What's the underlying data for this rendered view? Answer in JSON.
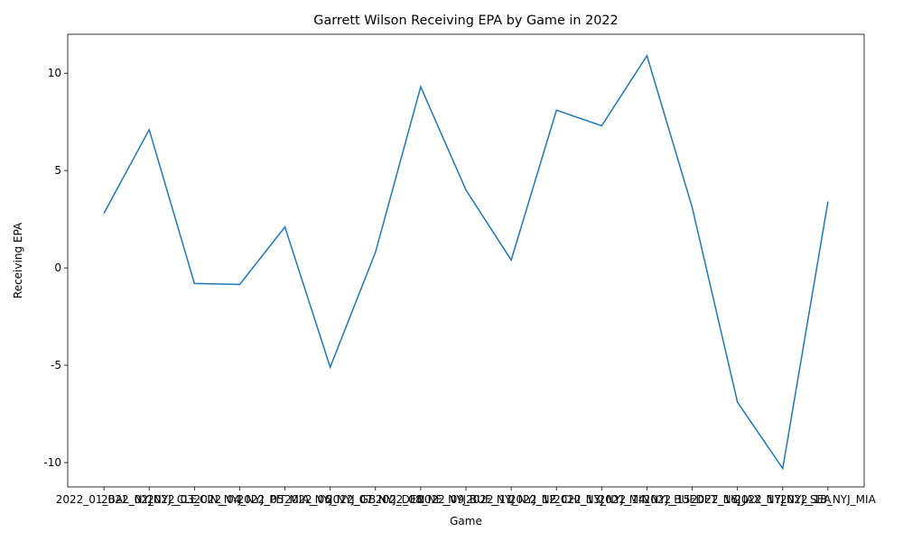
{
  "chart_data": {
    "type": "line",
    "title": "Garrett Wilson Receiving EPA by Game in 2022",
    "x_label": "Game",
    "y_label": "Receiving EPA",
    "categories": [
      "2022_01_BAL_NYJ",
      "2022_02_NYJ_CLE",
      "2022_03_CIN_NYJ",
      "2022_04_NYJ_PIT",
      "2022_05_MIA_NYJ",
      "2022_06_NYJ_GB",
      "2022_07_NYJ_DEN",
      "2022_08_NE_NYJ",
      "2022_09_BUF_NYJ",
      "2022_11_NYJ_NE",
      "2022_12_CHI_NYJ",
      "2022_13_NYJ_MIN",
      "2022_14_NYJ_BUF",
      "2022_15_DET_NYJ",
      "2022_16_JAX_NYJ",
      "2022_17_NYJ_SEA",
      "2022_18_NYJ_MIA"
    ],
    "series": [
      {
        "name": "Receiving EPA",
        "color": "#1f77b4",
        "values": [
          2.8,
          7.1,
          -0.8,
          -0.85,
          2.1,
          -5.1,
          0.8,
          9.3,
          4.0,
          0.4,
          8.1,
          7.3,
          10.9,
          3.1,
          -6.9,
          -10.3,
          3.4
        ]
      }
    ],
    "ylim": [
      -11.25,
      12
    ],
    "yticks": [
      -10,
      -5,
      0,
      5,
      10
    ],
    "grid": false
  }
}
